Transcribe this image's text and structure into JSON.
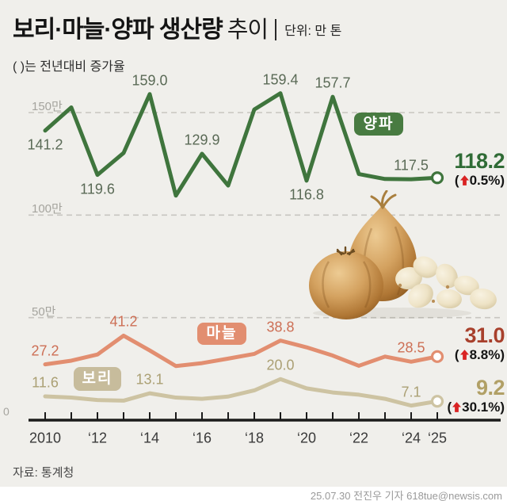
{
  "header": {
    "title_bold": "보리·마늘·양파 생산량",
    "title_light": "추이",
    "unit_label": "단위: 만 톤",
    "subtitle": "( )는 전년대비 증가율"
  },
  "strings": {
    "open_paren": "(",
    "close_paren": ")"
  },
  "colors": {
    "background": "#f0efeb",
    "gridline": "#c7c6c0",
    "axis": "#1b1b1b",
    "arrow_red": "#d92323"
  },
  "chart_data": {
    "type": "line",
    "title": "보리·마늘·양파 생산량 추이",
    "unit": "만 톤",
    "note": "( )는 전년대비 증가율",
    "x": [
      2010,
      2011,
      2012,
      2013,
      2014,
      2015,
      2016,
      2017,
      2018,
      2019,
      2020,
      2021,
      2022,
      2023,
      2024,
      2025
    ],
    "x_axis": {
      "labels": [
        {
          "year": 2010,
          "text": "2010"
        },
        {
          "year": 2012,
          "text": "‘12"
        },
        {
          "year": 2014,
          "text": "‘14"
        },
        {
          "year": 2016,
          "text": "‘16"
        },
        {
          "year": 2018,
          "text": "‘18"
        },
        {
          "year": 2020,
          "text": "‘20"
        },
        {
          "year": 2022,
          "text": "‘22"
        },
        {
          "year": 2024,
          "text": "‘24"
        },
        {
          "year": 2025,
          "text": "‘25"
        }
      ]
    },
    "y_axis": {
      "min": 0,
      "max": 160,
      "zero_label": "0",
      "gridlines": [
        {
          "value": 150,
          "label": "150만"
        },
        {
          "value": 100,
          "label": "100만"
        },
        {
          "value": 50,
          "label": "50만"
        }
      ]
    },
    "legend_position": "badges-on-lines",
    "series": [
      {
        "id": "onion",
        "name": "양파",
        "color": "#3f753d",
        "badge_color": "#487b41",
        "label_color": "#5a6a56",
        "end_color": "#2f6b35",
        "values": [
          141.2,
          152.5,
          119.6,
          130.3,
          159.0,
          109.5,
          129.9,
          114.4,
          151.5,
          159.4,
          116.8,
          157.7,
          120.0,
          117.6,
          117.5,
          118.2
        ],
        "point_labels": [
          {
            "year": 2010,
            "text": "141.2",
            "pos": "below"
          },
          {
            "year": 2012,
            "text": "119.6",
            "pos": "below"
          },
          {
            "year": 2014,
            "text": "159.0",
            "pos": "above"
          },
          {
            "year": 2016,
            "text": "129.9",
            "pos": "above"
          },
          {
            "year": 2019,
            "text": "159.4",
            "pos": "above"
          },
          {
            "year": 2020,
            "text": "116.8",
            "pos": "below"
          },
          {
            "year": 2021,
            "text": "157.7",
            "pos": "above"
          },
          {
            "year": 2024,
            "text": "117.5",
            "pos": "above"
          }
        ],
        "end_value": "118.2",
        "end_change": "0.5%"
      },
      {
        "id": "garlic",
        "name": "마늘",
        "color": "#e28e70",
        "badge_color": "#e28e70",
        "label_color": "#cd6f55",
        "end_color": "#a8402c",
        "values": [
          27.2,
          29.0,
          32.0,
          41.2,
          34.0,
          26.4,
          27.8,
          30.0,
          32.3,
          38.8,
          35.5,
          31.5,
          26.5,
          31.0,
          28.5,
          31.0
        ],
        "point_labels": [
          {
            "year": 2010,
            "text": "27.2",
            "pos": "above"
          },
          {
            "year": 2013,
            "text": "41.2",
            "pos": "above"
          },
          {
            "year": 2019,
            "text": "38.8",
            "pos": "above"
          },
          {
            "year": 2024,
            "text": "28.5",
            "pos": "above"
          }
        ],
        "end_value": "31.0",
        "end_change": "8.8%"
      },
      {
        "id": "barley",
        "name": "보리",
        "color": "#cdc3a2",
        "badge_color": "#c7bc9c",
        "label_color": "#aba074",
        "end_color": "#b1a066",
        "values": [
          11.6,
          11.0,
          9.8,
          9.5,
          13.1,
          11.0,
          10.4,
          11.5,
          14.5,
          20.0,
          15.5,
          13.5,
          12.4,
          10.4,
          7.1,
          9.2
        ],
        "point_labels": [
          {
            "year": 2010,
            "text": "11.6",
            "pos": "above"
          },
          {
            "year": 2014,
            "text": "13.1",
            "pos": "above"
          },
          {
            "year": 2019,
            "text": "20.0",
            "pos": "above"
          },
          {
            "year": 2024,
            "text": "7.1",
            "pos": "above"
          }
        ],
        "end_value": "9.2",
        "end_change": "30.1%"
      }
    ]
  },
  "footer": {
    "source": "자료: 통계청",
    "credit": "25.07.30 전진우 기자 618tue@newsis.com"
  }
}
